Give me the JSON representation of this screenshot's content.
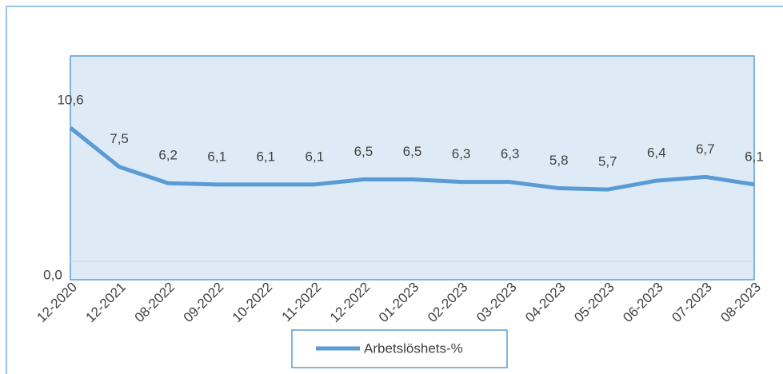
{
  "chart_data": {
    "type": "line",
    "categories": [
      "12-2020",
      "12-2021",
      "08-2022",
      "09-2022",
      "10-2022",
      "11-2022",
      "12-2022",
      "01-2023",
      "02-2023",
      "03-2023",
      "04-2023",
      "05-2023",
      "06-2023",
      "07-2023",
      "08-2023"
    ],
    "series": [
      {
        "name": "Arbetslöshets-%",
        "color": "#5b9bd5",
        "values": [
          10.6,
          7.5,
          6.2,
          6.1,
          6.1,
          6.1,
          6.5,
          6.5,
          6.3,
          6.3,
          5.8,
          5.7,
          6.4,
          6.7,
          6.1
        ],
        "value_labels": [
          "10,6",
          "7,5",
          "6,2",
          "6,1",
          "6,1",
          "6,1",
          "6,5",
          "6,5",
          "6,3",
          "6,3",
          "5,8",
          "5,7",
          "6,4",
          "6,7",
          "6,1"
        ]
      }
    ],
    "ylim": [
      0,
      16.3
    ],
    "yticks": [
      {
        "value": 0,
        "label": "0,0"
      }
    ],
    "grid": true,
    "legend": "bottom"
  }
}
